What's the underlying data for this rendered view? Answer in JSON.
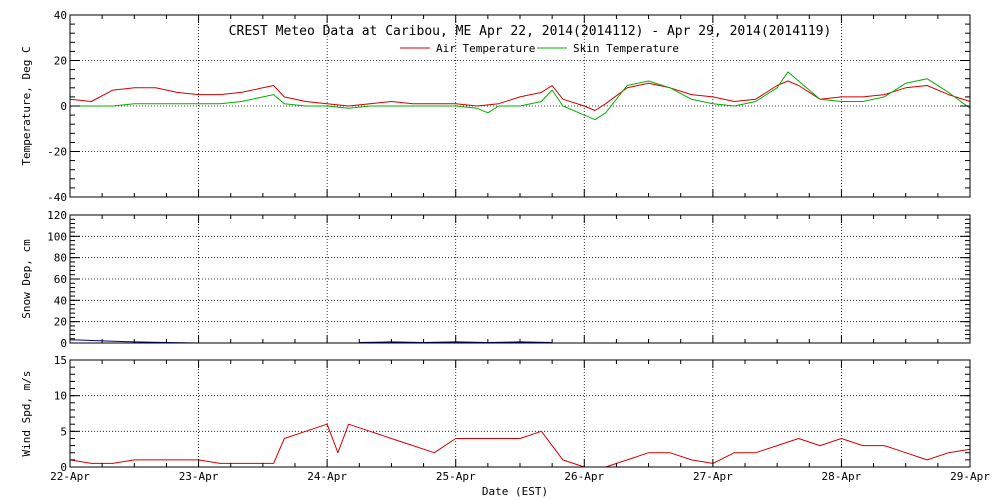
{
  "chart_data": [
    {
      "type": "line",
      "title": "CREST Meteo Data at Caribou, ME   Apr 22, 2014(2014112) - Apr 29, 2014(2014119)",
      "ylabel": "Temperature, Deg C",
      "xlabel": "",
      "ylim": [
        -40,
        40
      ],
      "xlim": [
        "2014-04-22 00:00",
        "2014-04-29 00:00"
      ],
      "yticks": [
        "40",
        "20",
        "0",
        "-20",
        "-40"
      ],
      "grid": true,
      "legend": "top-center",
      "series": [
        {
          "name": "Air Temperature",
          "color": "#d40000",
          "x": [
            "2014-04-22 00:00",
            "2014-04-22 04:00",
            "2014-04-22 08:00",
            "2014-04-22 12:00",
            "2014-04-22 16:00",
            "2014-04-22 20:00",
            "2014-04-23 00:00",
            "2014-04-23 04:00",
            "2014-04-23 08:00",
            "2014-04-23 12:00",
            "2014-04-23 14:00",
            "2014-04-23 16:00",
            "2014-04-23 20:00",
            "2014-04-24 00:00",
            "2014-04-24 04:00",
            "2014-04-24 08:00",
            "2014-04-24 12:00",
            "2014-04-24 16:00",
            "2014-04-24 20:00",
            "2014-04-25 00:00",
            "2014-04-25 04:00",
            "2014-04-25 08:00",
            "2014-04-25 12:00",
            "2014-04-25 16:00",
            "2014-04-25 18:00",
            "2014-04-25 20:00",
            "2014-04-26 00:00",
            "2014-04-26 02:00",
            "2014-04-26 04:00",
            "2014-04-26 08:00",
            "2014-04-26 12:00",
            "2014-04-26 16:00",
            "2014-04-26 20:00",
            "2014-04-27 00:00",
            "2014-04-27 04:00",
            "2014-04-27 08:00",
            "2014-04-27 12:00",
            "2014-04-27 14:00",
            "2014-04-27 16:00",
            "2014-04-27 20:00",
            "2014-04-28 00:00",
            "2014-04-28 04:00",
            "2014-04-28 08:00",
            "2014-04-28 12:00",
            "2014-04-28 16:00",
            "2014-04-28 20:00",
            "2014-04-29 00:00"
          ],
          "y": [
            3,
            2,
            7,
            8,
            8,
            6,
            5,
            5,
            6,
            8,
            9,
            4,
            2,
            1,
            0,
            1,
            2,
            1,
            1,
            1,
            0,
            1,
            4,
            6,
            9,
            3,
            0,
            -2,
            1,
            8,
            10,
            8,
            5,
            4,
            2,
            3,
            9,
            11,
            9,
            3,
            4,
            4,
            5,
            8,
            9,
            5,
            2
          ]
        },
        {
          "name": "Skin Temperature",
          "color": "#00b000",
          "x": [
            "2014-04-22 00:00",
            "2014-04-22 04:00",
            "2014-04-22 08:00",
            "2014-04-22 12:00",
            "2014-04-22 16:00",
            "2014-04-22 20:00",
            "2014-04-23 00:00",
            "2014-04-23 04:00",
            "2014-04-23 08:00",
            "2014-04-23 12:00",
            "2014-04-23 14:00",
            "2014-04-23 16:00",
            "2014-04-23 20:00",
            "2014-04-24 00:00",
            "2014-04-24 04:00",
            "2014-04-24 08:00",
            "2014-04-24 12:00",
            "2014-04-24 16:00",
            "2014-04-24 20:00",
            "2014-04-25 00:00",
            "2014-04-25 04:00",
            "2014-04-25 06:00",
            "2014-04-25 08:00",
            "2014-04-25 12:00",
            "2014-04-25 16:00",
            "2014-04-25 18:00",
            "2014-04-25 20:00",
            "2014-04-26 00:00",
            "2014-04-26 02:00",
            "2014-04-26 04:00",
            "2014-04-26 08:00",
            "2014-04-26 12:00",
            "2014-04-26 16:00",
            "2014-04-26 20:00",
            "2014-04-27 00:00",
            "2014-04-27 04:00",
            "2014-04-27 08:00",
            "2014-04-27 12:00",
            "2014-04-27 14:00",
            "2014-04-27 16:00",
            "2014-04-27 20:00",
            "2014-04-28 00:00",
            "2014-04-28 04:00",
            "2014-04-28 08:00",
            "2014-04-28 12:00",
            "2014-04-28 16:00",
            "2014-04-28 20:00",
            "2014-04-29 00:00"
          ],
          "y": [
            0,
            0,
            0,
            1,
            1,
            1,
            1,
            1,
            2,
            4,
            5,
            1,
            0,
            0,
            -1,
            0,
            0,
            0,
            0,
            0,
            -1,
            -3,
            0,
            0,
            2,
            7,
            0,
            -4,
            -6,
            -3,
            9,
            11,
            8,
            3,
            1,
            0,
            2,
            8,
            15,
            11,
            3,
            2,
            2,
            4,
            10,
            12,
            6,
            -1
          ]
        }
      ]
    },
    {
      "type": "line",
      "ylabel": "Snow Dep, cm",
      "xlabel": "",
      "ylim": [
        0,
        120
      ],
      "xlim": [
        "2014-04-22 00:00",
        "2014-04-29 00:00"
      ],
      "yticks": [
        "120",
        "100",
        "80",
        "60",
        "40",
        "20",
        "0"
      ],
      "grid": true,
      "series": [
        {
          "color": "#00008b",
          "x": [
            "2014-04-22 00:00",
            "2014-04-22 03:00",
            "2014-04-22 06:00",
            "2014-04-22 09:00",
            "2014-04-22 12:00",
            "2014-04-22 18:00",
            "2014-04-23 00:00"
          ],
          "y": [
            3,
            2.5,
            2,
            1.5,
            1,
            0.5,
            0
          ]
        },
        {
          "color": "#00008b",
          "x": [
            "2014-04-24 06:00",
            "2014-04-24 12:00",
            "2014-04-24 18:00",
            "2014-04-25 00:00",
            "2014-04-25 06:00",
            "2014-04-25 12:00",
            "2014-04-25 18:00"
          ],
          "y": [
            0.5,
            1,
            0.5,
            1,
            0.5,
            1,
            0.5
          ]
        }
      ]
    },
    {
      "type": "line",
      "ylabel": "Wind Spd, m/s",
      "xlabel": "Date (EST)",
      "ylim": [
        0,
        15
      ],
      "xlim": [
        "2014-04-22 00:00",
        "2014-04-29 00:00"
      ],
      "yticks": [
        "15",
        "10",
        "5",
        "0"
      ],
      "xticks": [
        "22-Apr",
        "23-Apr",
        "24-Apr",
        "25-Apr",
        "26-Apr",
        "27-Apr",
        "28-Apr",
        "29-Apr"
      ],
      "grid": true,
      "series": [
        {
          "color": "#d40000",
          "x": [
            "2014-04-22 00:00",
            "2014-04-22 04:00",
            "2014-04-22 08:00",
            "2014-04-22 12:00",
            "2014-04-22 16:00",
            "2014-04-22 20:00",
            "2014-04-23 00:00",
            "2014-04-23 04:00",
            "2014-04-23 08:00",
            "2014-04-23 12:00",
            "2014-04-23 14:00",
            "2014-04-23 16:00",
            "2014-04-23 20:00",
            "2014-04-24 00:00",
            "2014-04-24 02:00",
            "2014-04-24 04:00",
            "2014-04-24 08:00",
            "2014-04-24 12:00",
            "2014-04-24 16:00",
            "2014-04-24 20:00",
            "2014-04-25 00:00",
            "2014-04-25 04:00",
            "2014-04-25 08:00",
            "2014-04-25 12:00",
            "2014-04-25 16:00",
            "2014-04-25 20:00",
            "2014-04-26 00:00",
            "2014-04-26 04:00",
            "2014-04-26 08:00",
            "2014-04-26 12:00",
            "2014-04-26 16:00",
            "2014-04-26 20:00",
            "2014-04-27 00:00",
            "2014-04-27 04:00",
            "2014-04-27 08:00",
            "2014-04-27 12:00",
            "2014-04-27 16:00",
            "2014-04-27 20:00",
            "2014-04-28 00:00",
            "2014-04-28 04:00",
            "2014-04-28 08:00",
            "2014-04-28 12:00",
            "2014-04-28 16:00",
            "2014-04-28 20:00",
            "2014-04-29 00:00"
          ],
          "y": [
            1,
            0.5,
            0.5,
            1,
            1,
            1,
            1,
            0.5,
            0.5,
            0.5,
            0.5,
            4,
            5,
            6,
            2,
            6,
            5,
            4,
            3,
            2,
            4,
            4,
            4,
            4,
            5,
            1,
            0,
            0,
            1,
            2,
            2,
            1,
            0.5,
            2,
            2,
            3,
            4,
            3,
            4,
            3,
            3,
            2,
            1,
            2,
            2.5
          ]
        }
      ]
    }
  ]
}
